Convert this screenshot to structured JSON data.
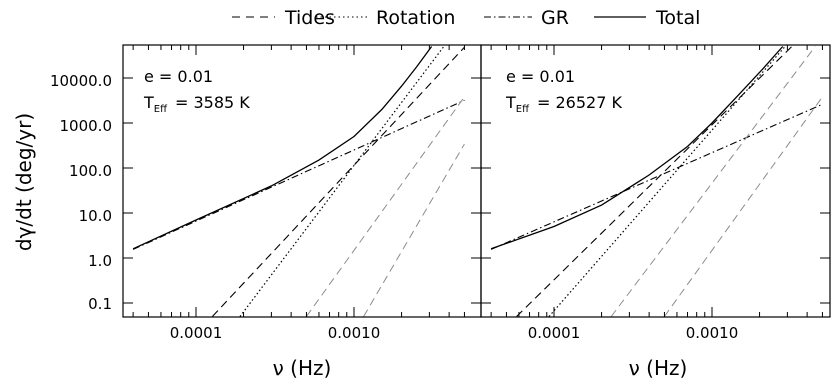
{
  "legend": {
    "items": [
      {
        "label": "Tides",
        "style": "dashed"
      },
      {
        "label": "Rotation",
        "style": "dotted"
      },
      {
        "label": "GR",
        "style": "dashdot"
      },
      {
        "label": "Total",
        "style": "solid"
      }
    ]
  },
  "colors": {
    "line": "#000000",
    "secondary": "#8c8c8c",
    "background": "#ffffff"
  },
  "chart_data": [
    {
      "type": "line",
      "xlabel": "ν (Hz)",
      "ylabel": "dγ/dt (deg/yr)",
      "xscale": "log",
      "yscale": "log",
      "xlim": [
        4e-05,
        0.005
      ],
      "ylim": [
        0.05,
        50000
      ],
      "xticks": [
        "0.0001",
        "0.0010"
      ],
      "yticks": [
        "0.1",
        "1.0",
        "10.0",
        "100.0",
        "1000.0",
        "10000.0"
      ],
      "annotations": [
        "e = 0.01",
        "T_Eff = 3585 K"
      ],
      "annotation_e": "e = 0.01",
      "annotation_teff_prefix": "T",
      "annotation_teff_sub": "Eff",
      "annotation_teff_value": "= 3585 K",
      "series": [
        {
          "name": "Tides",
          "style": "dashed",
          "x": [
            0.000127,
            0.005
          ],
          "y": [
            0.05,
            48000
          ]
        },
        {
          "name": "Rotation",
          "style": "dotted",
          "x": [
            0.00019,
            0.0037
          ],
          "y": [
            0.05,
            50000
          ]
        },
        {
          "name": "GR",
          "style": "dashdot",
          "x": [
            4e-05,
            0.005
          ],
          "y": [
            1.55,
            3200
          ]
        },
        {
          "name": "Tides",
          "style": "dashed-gray",
          "x": [
            0.0005,
            0.005
          ],
          "y": [
            0.05,
            3800
          ]
        },
        {
          "name": "Tides",
          "style": "dashed-gray",
          "x": [
            0.00115,
            0.005
          ],
          "y": [
            0.05,
            340
          ]
        },
        {
          "name": "Total",
          "style": "solid",
          "x": [
            4e-05,
            0.0001,
            0.0003,
            0.0006,
            0.001,
            0.0015,
            0.002,
            0.0025,
            0.0031
          ],
          "y": [
            1.6,
            7.0,
            40,
            150,
            500,
            2000,
            6600,
            18000,
            50000
          ]
        }
      ]
    },
    {
      "type": "line",
      "xlabel": "ν (Hz)",
      "xscale": "log",
      "yscale": "log",
      "xlim": [
        4e-05,
        0.005
      ],
      "ylim": [
        0.05,
        50000
      ],
      "xticks": [
        "0.0001",
        "0.0010"
      ],
      "annotations": [
        "e = 0.01",
        "T_Eff = 26527 K"
      ],
      "annotation_e": "e = 0.01",
      "annotation_teff_prefix": "T",
      "annotation_teff_sub": "Eff",
      "annotation_teff_value": "= 26527 K",
      "series": [
        {
          "name": "Tides",
          "style": "dashed",
          "x": [
            5.8e-05,
            0.0032
          ],
          "y": [
            0.05,
            50000
          ]
        },
        {
          "name": "Rotation",
          "style": "dotted",
          "x": [
            9.3e-05,
            0.0029
          ],
          "y": [
            0.05,
            50000
          ]
        },
        {
          "name": "GR",
          "style": "dashdot",
          "x": [
            4e-05,
            0.005
          ],
          "y": [
            1.55,
            2600
          ]
        },
        {
          "name": "Tides",
          "style": "dashed-gray",
          "x": [
            0.00023,
            0.0045
          ],
          "y": [
            0.05,
            50000
          ]
        },
        {
          "name": "Tides",
          "style": "dashed-gray",
          "x": [
            0.0005,
            0.005
          ],
          "y": [
            0.05,
            3800
          ]
        },
        {
          "name": "Total",
          "style": "solid",
          "x": [
            4e-05,
            0.0001,
            0.0002,
            0.0004,
            0.0007,
            0.001,
            0.0015,
            0.0021,
            0.0028
          ],
          "y": [
            1.6,
            5.0,
            15,
            70,
            300,
            1000,
            4500,
            16000,
            50000
          ]
        }
      ]
    }
  ]
}
